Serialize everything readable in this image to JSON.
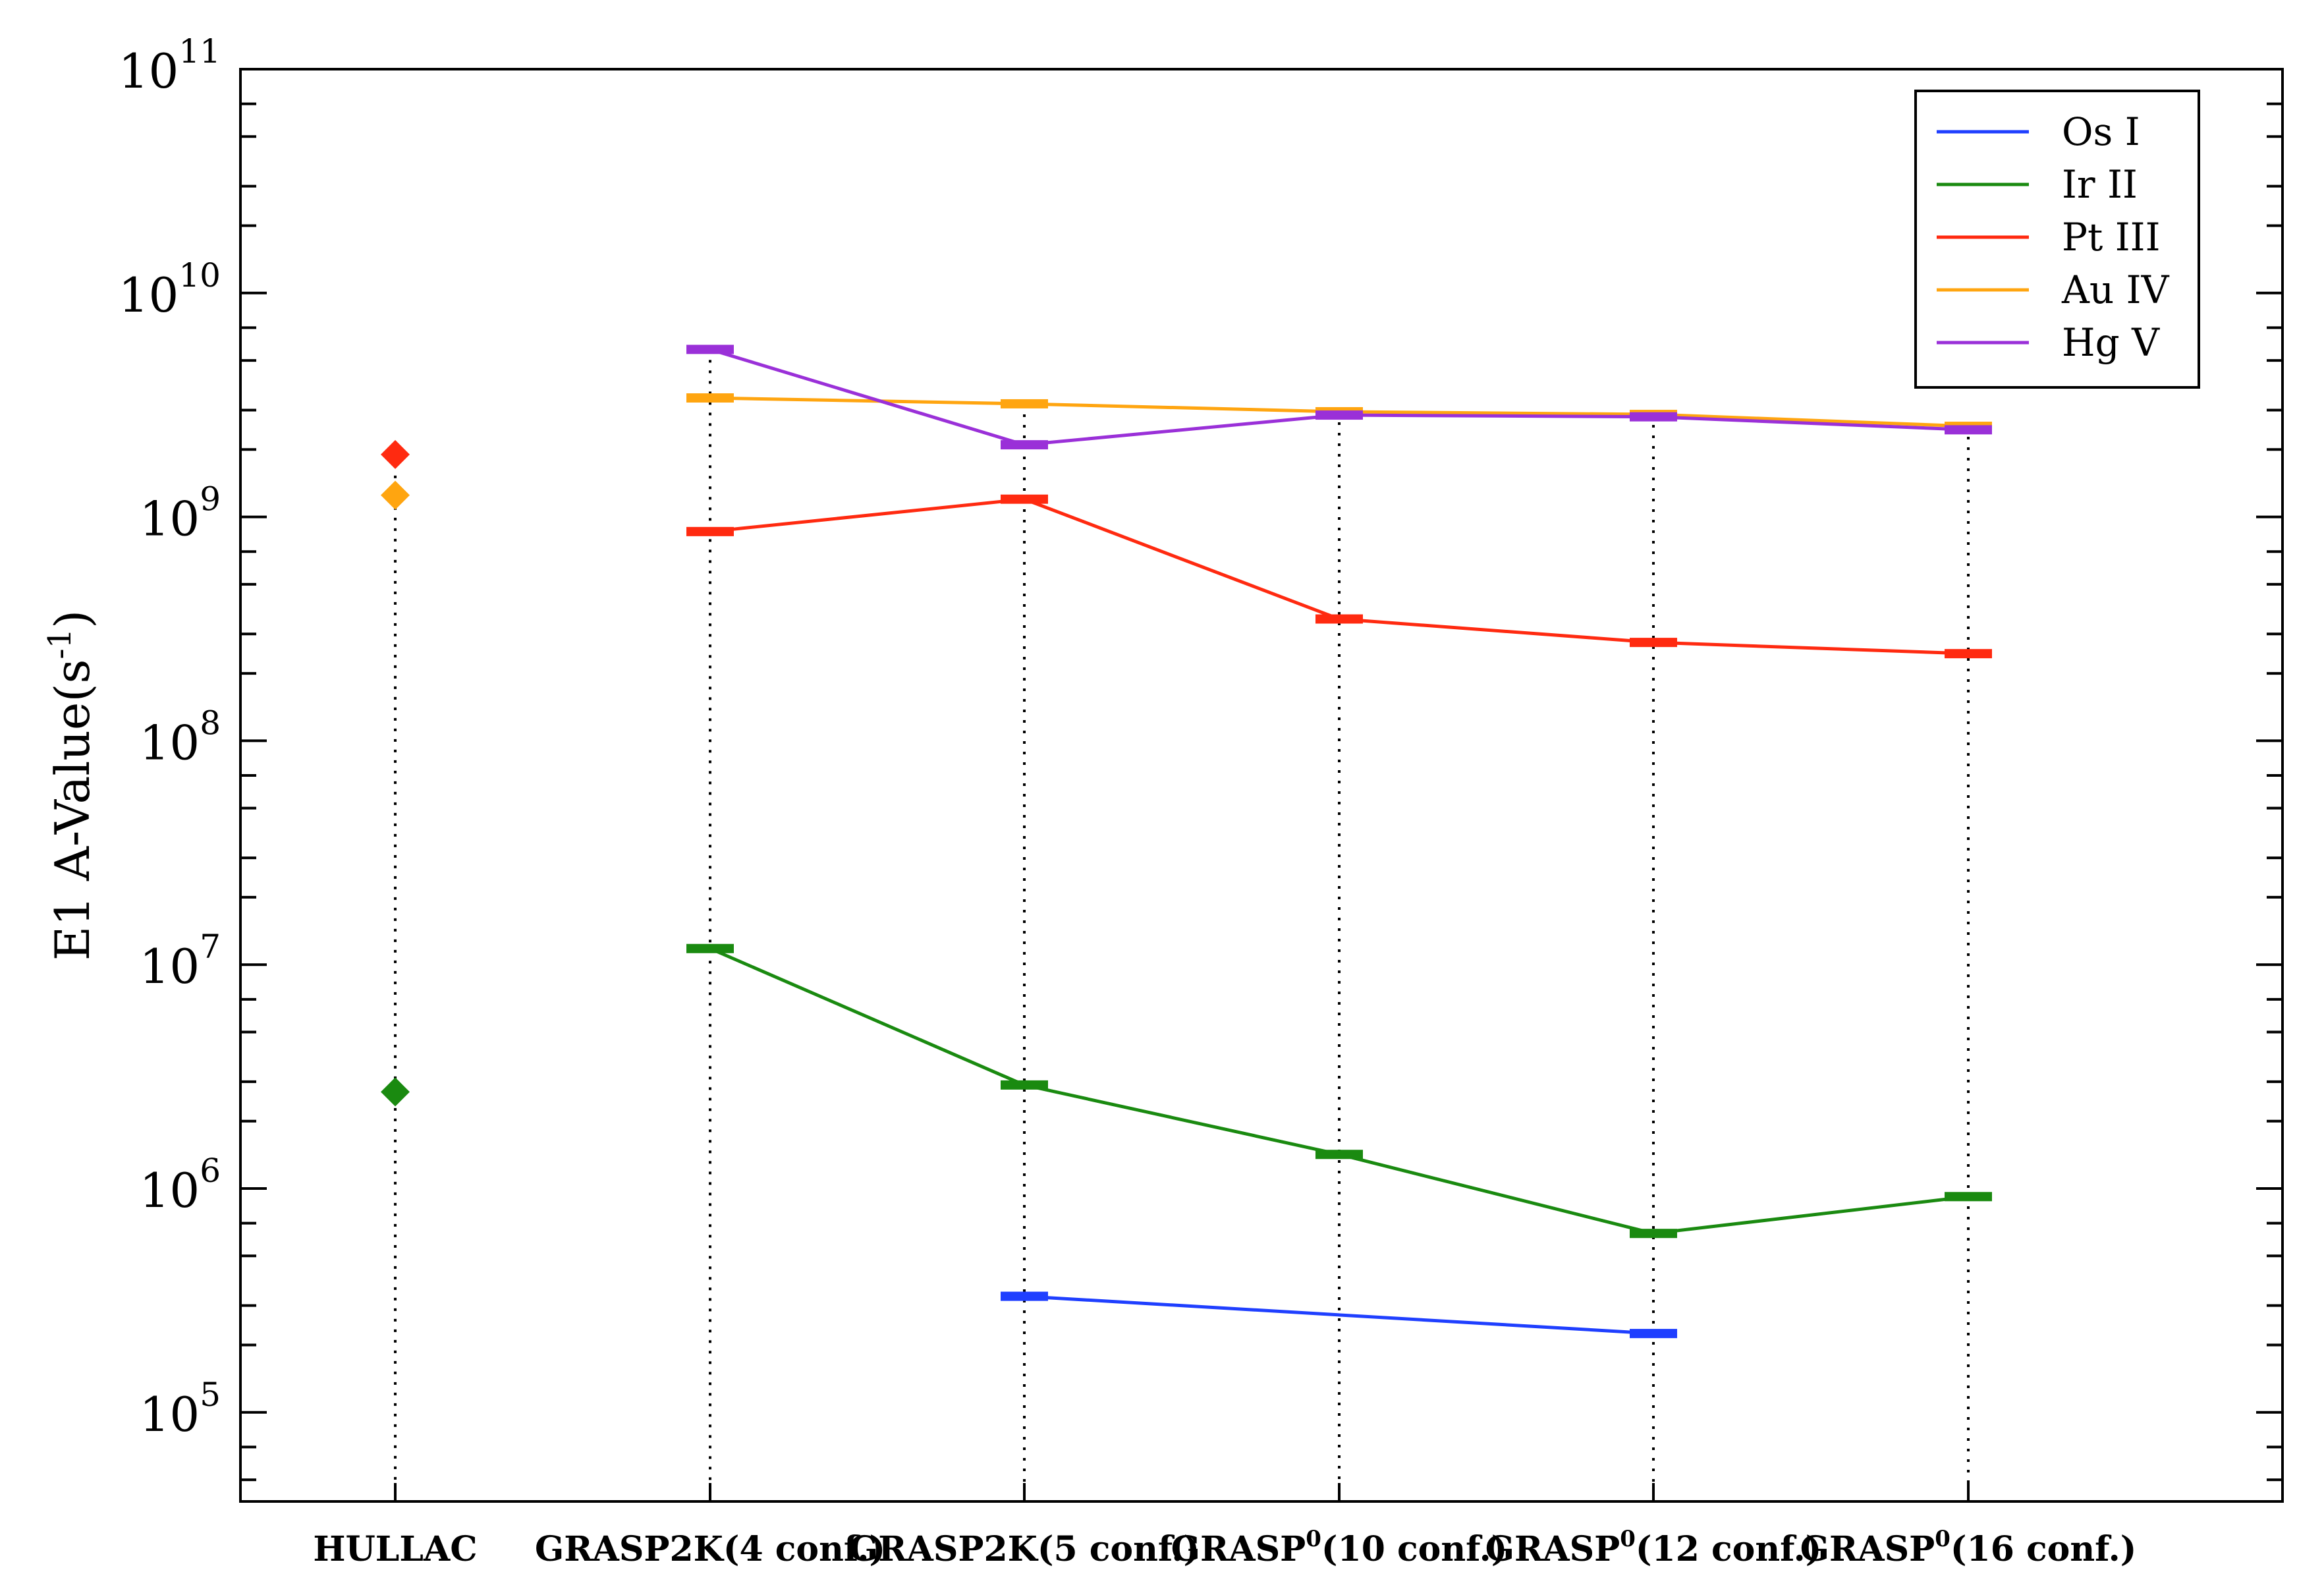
{
  "chart_data": {
    "type": "line",
    "categories": [
      {
        "base": "HULLAC",
        "sup": "",
        "rest": ""
      },
      {
        "base": "GRASP2K",
        "sup": "",
        "rest": "(4 conf.)"
      },
      {
        "base": "GRASP2K",
        "sup": "",
        "rest": "(5 conf.)"
      },
      {
        "base": "GRASP",
        "sup": "0",
        "rest": "(10 conf.)"
      },
      {
        "base": "GRASP",
        "sup": "0",
        "rest": "(12 conf.)"
      },
      {
        "base": "GRASP",
        "sup": "0",
        "rest": "(16 conf.)"
      }
    ],
    "ylabel": {
      "main": "E1 A-Value(s",
      "sup": "-1",
      "close": ")"
    },
    "yscale": "log",
    "ylim": [
      40000,
      100000000000
    ],
    "yticks": [
      {
        "exp": 5,
        "label": "10",
        "sup": "5"
      },
      {
        "exp": 6,
        "label": "10",
        "sup": "6"
      },
      {
        "exp": 7,
        "label": "10",
        "sup": "7"
      },
      {
        "exp": 8,
        "label": "10",
        "sup": "8"
      },
      {
        "exp": 9,
        "label": "10",
        "sup": "9"
      },
      {
        "exp": 10,
        "label": "10",
        "sup": "10"
      },
      {
        "exp": 11,
        "label": "10",
        "sup": "11"
      }
    ],
    "legend_position": "top-right",
    "grid": false,
    "series": [
      {
        "name": "Os I",
        "color": "#1f3fff",
        "values": [
          null,
          null,
          330000,
          null,
          225000,
          null
        ]
      },
      {
        "name": "Ir II",
        "color": "#1a8a10",
        "values": [
          2700000,
          11800000,
          2900000,
          1420000,
          630000,
          920000
        ]
      },
      {
        "name": "Pt III",
        "color": "#ff2a10",
        "values": [
          1900000000,
          860000000,
          1200000000,
          350000000,
          275000000,
          245000000
        ]
      },
      {
        "name": "Au IV",
        "color": "#ffa510",
        "values": [
          1250000000,
          3400000000,
          3200000000,
          2950000000,
          2870000000,
          2540000000
        ]
      },
      {
        "name": "Hg V",
        "color": "#9a30d8",
        "values": [
          null,
          5600000000,
          2100000000,
          2850000000,
          2800000000,
          2450000000
        ]
      }
    ],
    "hullac_markers": "diamond"
  }
}
